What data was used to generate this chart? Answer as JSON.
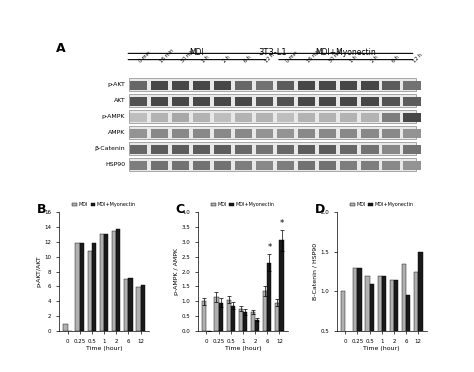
{
  "title_blot": "3T3-L1",
  "panel_a_label": "A",
  "panel_b_label": "B",
  "panel_c_label": "C",
  "panel_d_label": "D",
  "x_ticks": [
    0,
    0.25,
    0.5,
    1,
    2,
    6,
    12
  ],
  "x_tick_labels": [
    "0",
    "0.25",
    "0.5",
    "1",
    "2",
    "6",
    "12"
  ],
  "xlabel": "Time (hour)",
  "legend_mdi": "MDI",
  "legend_mdi_myonectin": "MDI+Myonectin",
  "panel_b_ylabel": "p-AKT/AKT",
  "panel_b_mdi": [
    1.0,
    11.8,
    10.8,
    13.0,
    13.5,
    7.0,
    5.9
  ],
  "panel_b_mdi_myo": [
    0.0,
    11.8,
    11.8,
    13.0,
    13.8,
    7.2,
    6.2
  ],
  "panel_b_ylim": [
    0,
    16
  ],
  "panel_b_yticks": [
    0,
    2,
    4,
    6,
    8,
    10,
    12,
    14,
    16
  ],
  "panel_c_ylabel": "p-AMPK / AMPK",
  "panel_c_mdi": [
    1.0,
    1.15,
    1.05,
    0.75,
    0.65,
    1.35,
    0.95
  ],
  "panel_c_mdi_myo": [
    0.0,
    0.95,
    0.85,
    0.65,
    0.38,
    2.3,
    3.05
  ],
  "panel_c_mdi_err": [
    0.12,
    0.18,
    0.12,
    0.08,
    0.07,
    0.18,
    0.12
  ],
  "panel_c_mdi_myo_err": [
    0.0,
    0.15,
    0.12,
    0.1,
    0.05,
    0.28,
    0.35
  ],
  "panel_c_ylim": [
    0,
    4
  ],
  "panel_c_yticks": [
    0,
    0.5,
    1.0,
    1.5,
    2.0,
    2.5,
    3.0,
    3.5,
    4.0
  ],
  "panel_d_ylabel": "B-Catenin / HSP90",
  "panel_d_mdi": [
    1.0,
    1.3,
    1.2,
    1.2,
    1.15,
    1.35,
    1.25
  ],
  "panel_d_mdi_myo": [
    0.0,
    1.3,
    1.1,
    1.2,
    1.15,
    0.95,
    1.5
  ],
  "panel_d_ylim": [
    0.5,
    2.0
  ],
  "panel_d_yticks": [
    0.5,
    1.0,
    1.5,
    2.0
  ],
  "bar_width": 0.35,
  "color_mdi": "#b0b0b0",
  "color_mdi_myo": "#1a1a1a",
  "bg_color": "#ffffff",
  "blot_rows": [
    "p-AKT",
    "AKT",
    "p-AMPK",
    "AMPK",
    "β-Catenin",
    "HSP90"
  ],
  "mdi_timepoints": [
    "0 min",
    "15 min",
    "30 min",
    "1 h",
    "2 h",
    "6 h",
    "12 h"
  ],
  "mdi_myo_timepoints": [
    "0 min",
    "15 min",
    "30 min",
    "1 h",
    "2 h",
    "6 h",
    "12 h"
  ]
}
